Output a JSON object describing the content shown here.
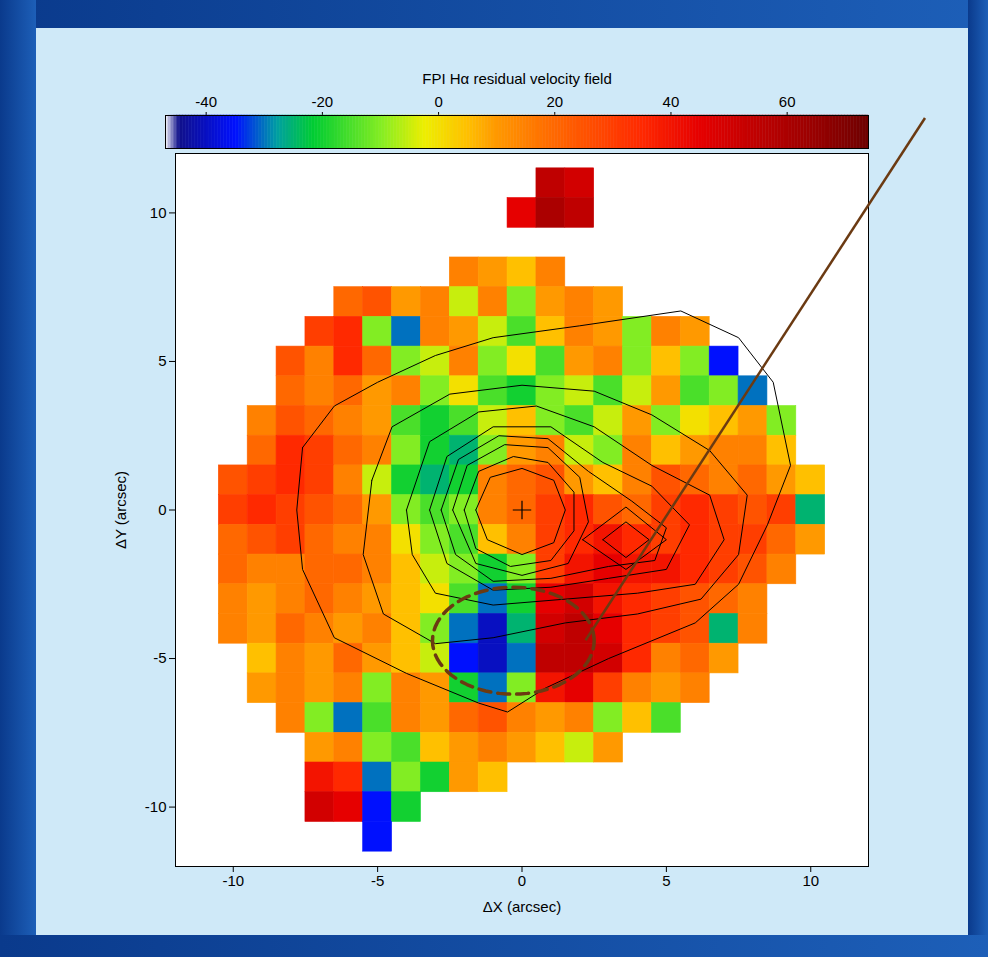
{
  "chart_data": {
    "type": "heatmap",
    "xlabel": "ΔX (arcsec)",
    "ylabel": "ΔY (arcsec)",
    "xlim": [
      -12,
      12
    ],
    "ylim": [
      -12,
      12
    ],
    "xticks": [
      -10,
      -5,
      0,
      5,
      10
    ],
    "yticks": [
      -10,
      -5,
      0,
      5,
      10
    ],
    "x_bins": [
      -11.5,
      -10.5,
      -9.5,
      -8.5,
      -7.5,
      -6.5,
      -5.5,
      -4.5,
      -3.5,
      -2.5,
      -1.5,
      -0.5,
      0.5,
      1.5,
      2.5,
      3.5,
      4.5,
      5.5,
      6.5,
      7.5,
      8.5,
      9.5,
      10.5
    ],
    "y_bins": [
      11.5,
      10.5,
      9.5,
      8.5,
      7.5,
      6.5,
      5.5,
      4.5,
      3.5,
      2.5,
      1.5,
      0.5,
      -0.5,
      -1.5,
      -2.5,
      -3.5,
      -4.5,
      -5.5,
      -6.5,
      -7.5,
      -8.5,
      -9.5,
      -10.5,
      -11.5
    ],
    "cells": [
      [
        null,
        null,
        null,
        null,
        null,
        null,
        null,
        null,
        null,
        null,
        null,
        null,
        55,
        50,
        null,
        null,
        null,
        null,
        null,
        null,
        null,
        null
      ],
      [
        null,
        null,
        null,
        null,
        null,
        null,
        null,
        null,
        null,
        null,
        null,
        45,
        60,
        55,
        null,
        null,
        null,
        null,
        null,
        null,
        null,
        null
      ],
      [
        null,
        null,
        null,
        null,
        null,
        null,
        null,
        null,
        null,
        null,
        null,
        null,
        null,
        null,
        null,
        null,
        null,
        null,
        null,
        null,
        null,
        null
      ],
      [
        null,
        null,
        null,
        null,
        null,
        null,
        null,
        null,
        null,
        15,
        10,
        5,
        15,
        null,
        null,
        null,
        null,
        null,
        null,
        null,
        null,
        null
      ],
      [
        null,
        null,
        null,
        null,
        null,
        20,
        25,
        10,
        15,
        -5,
        15,
        -10,
        10,
        15,
        10,
        null,
        null,
        null,
        null,
        null,
        null,
        null
      ],
      [
        null,
        null,
        null,
        null,
        30,
        35,
        -10,
        -30,
        15,
        10,
        -5,
        -15,
        5,
        15,
        10,
        -10,
        15,
        10,
        null,
        null,
        null,
        null
      ],
      [
        null,
        null,
        null,
        25,
        15,
        35,
        20,
        -10,
        -5,
        15,
        -10,
        0,
        -15,
        10,
        15,
        -10,
        5,
        -10,
        -35,
        null,
        null,
        null
      ],
      [
        null,
        null,
        null,
        20,
        15,
        20,
        10,
        15,
        -10,
        0,
        -15,
        -20,
        -10,
        -5,
        -15,
        -5,
        10,
        -15,
        -10,
        -30,
        null,
        null
      ],
      [
        null,
        null,
        15,
        25,
        20,
        15,
        10,
        -15,
        -20,
        -15,
        -5,
        5,
        -10,
        -15,
        -5,
        10,
        -10,
        0,
        5,
        10,
        -10,
        null
      ],
      [
        null,
        null,
        20,
        35,
        30,
        20,
        15,
        -10,
        -20,
        -25,
        -10,
        10,
        15,
        -5,
        -10,
        15,
        5,
        10,
        15,
        15,
        5,
        null
      ],
      [
        null,
        25,
        30,
        35,
        30,
        15,
        -5,
        -20,
        -25,
        -20,
        15,
        20,
        25,
        10,
        5,
        15,
        25,
        20,
        15,
        20,
        10,
        5
      ],
      [
        null,
        30,
        35,
        30,
        25,
        20,
        10,
        -10,
        -15,
        -10,
        15,
        20,
        30,
        35,
        25,
        20,
        30,
        35,
        30,
        25,
        30,
        -25
      ],
      [
        null,
        20,
        25,
        30,
        20,
        15,
        15,
        0,
        -10,
        -15,
        5,
        15,
        30,
        35,
        40,
        35,
        30,
        35,
        30,
        30,
        20,
        10
      ],
      [
        null,
        20,
        15,
        15,
        20,
        20,
        15,
        5,
        -5,
        -10,
        -20,
        -10,
        30,
        40,
        45,
        40,
        40,
        35,
        30,
        25,
        15,
        null
      ],
      [
        null,
        15,
        10,
        15,
        20,
        15,
        10,
        5,
        0,
        -15,
        -30,
        -20,
        45,
        50,
        40,
        35,
        30,
        25,
        20,
        15,
        null,
        null
      ],
      [
        null,
        15,
        10,
        20,
        15,
        10,
        15,
        5,
        -10,
        -30,
        -40,
        -25,
        50,
        55,
        45,
        35,
        30,
        25,
        -25,
        15,
        null,
        null
      ],
      [
        null,
        null,
        5,
        15,
        10,
        20,
        10,
        5,
        -5,
        -35,
        -40,
        -30,
        55,
        55,
        50,
        35,
        15,
        20,
        10,
        null,
        null,
        null
      ],
      [
        null,
        null,
        10,
        15,
        10,
        15,
        -10,
        15,
        10,
        -20,
        -30,
        -10,
        40,
        45,
        30,
        15,
        10,
        15,
        null,
        null,
        null,
        null
      ],
      [
        null,
        null,
        null,
        15,
        -10,
        -30,
        -15,
        15,
        10,
        20,
        25,
        15,
        10,
        15,
        -10,
        5,
        -15,
        null,
        null,
        null,
        null,
        null
      ],
      [
        null,
        null,
        null,
        null,
        10,
        15,
        -10,
        -15,
        5,
        10,
        15,
        10,
        5,
        -5,
        10,
        null,
        null,
        null,
        null,
        null,
        null,
        null
      ],
      [
        null,
        null,
        null,
        null,
        40,
        35,
        -30,
        -10,
        -20,
        10,
        5,
        null,
        null,
        null,
        null,
        null,
        null,
        null,
        null,
        null,
        null,
        null
      ],
      [
        null,
        null,
        null,
        null,
        50,
        45,
        -35,
        -20,
        null,
        null,
        null,
        null,
        null,
        null,
        null,
        null,
        null,
        null,
        null,
        null,
        null,
        null
      ],
      [
        null,
        null,
        null,
        null,
        null,
        null,
        -35,
        null,
        null,
        null,
        null,
        null,
        null,
        null,
        null,
        null,
        null,
        null,
        null,
        null,
        null,
        null
      ]
    ],
    "colorbar": {
      "title": "FPI Hα residual velocity field",
      "range": [
        -47,
        74
      ],
      "ticks": [
        -40,
        -20,
        0,
        20,
        40,
        60
      ]
    },
    "contours": [
      [
        [
          -7.6,
          2.1
        ],
        [
          -6.5,
          3.5
        ],
        [
          -5,
          4.3
        ],
        [
          -3,
          5.2
        ],
        [
          -1,
          5.8
        ],
        [
          2,
          6.2
        ],
        [
          5.5,
          6.7
        ],
        [
          7.5,
          5.8
        ],
        [
          8.7,
          4.3
        ],
        [
          9.3,
          1.5
        ],
        [
          8.5,
          -0.5
        ],
        [
          7.5,
          -2.5
        ],
        [
          6,
          -3.8
        ],
        [
          3,
          -5
        ],
        [
          0.8,
          -6
        ],
        [
          -0.5,
          -6.8
        ],
        [
          -1.5,
          -6.5
        ],
        [
          -4,
          -5.5
        ],
        [
          -6.5,
          -4.3
        ],
        [
          -7.6,
          -2
        ],
        [
          -7.8,
          0
        ],
        [
          -7.6,
          2.1
        ]
      ],
      [
        [
          -5.2,
          1
        ],
        [
          -4.5,
          2.8
        ],
        [
          -2.5,
          3.9
        ],
        [
          0,
          4.2
        ],
        [
          2.5,
          4
        ],
        [
          4.5,
          3.2
        ],
        [
          6.5,
          2
        ],
        [
          7.8,
          0.5
        ],
        [
          7.5,
          -1.5
        ],
        [
          6.2,
          -3
        ],
        [
          4,
          -3.5
        ],
        [
          1.5,
          -3.8
        ],
        [
          -1,
          -4.3
        ],
        [
          -3,
          -4.5
        ],
        [
          -4.8,
          -3.5
        ],
        [
          -5.5,
          -1.5
        ],
        [
          -5.2,
          1
        ]
      ],
      [
        [
          -4,
          0
        ],
        [
          -3.2,
          2.3
        ],
        [
          -1.5,
          3.3
        ],
        [
          0.5,
          3.5
        ],
        [
          2.5,
          2.8
        ],
        [
          4.5,
          1.5
        ],
        [
          6.5,
          0.5
        ],
        [
          7,
          -1
        ],
        [
          6,
          -2.5
        ],
        [
          4,
          -2.8
        ],
        [
          1.5,
          -3
        ],
        [
          -1,
          -3.2
        ],
        [
          -3,
          -2.8
        ],
        [
          -3.8,
          -1.5
        ],
        [
          -4,
          0
        ]
      ],
      [
        [
          -3.2,
          0
        ],
        [
          -2.6,
          1.8
        ],
        [
          -1,
          2.8
        ],
        [
          1,
          2.8
        ],
        [
          2.8,
          1.6
        ],
        [
          4.5,
          0.8
        ],
        [
          5.8,
          -0.5
        ],
        [
          5,
          -2
        ],
        [
          3,
          -2.3
        ],
        [
          1,
          -2.6
        ],
        [
          -1,
          -2.7
        ],
        [
          -2.6,
          -1.8
        ],
        [
          -3.2,
          0
        ]
      ],
      [
        [
          -2.8,
          0
        ],
        [
          -2.2,
          1.7
        ],
        [
          -0.8,
          2.5
        ],
        [
          0.9,
          2.4
        ],
        [
          2.3,
          1.3
        ],
        [
          3.8,
          0.3
        ],
        [
          5,
          -0.6
        ],
        [
          4.6,
          -1.7
        ],
        [
          3,
          -1.9
        ],
        [
          1,
          -2.3
        ],
        [
          -1,
          -2.4
        ],
        [
          -2.3,
          -1.5
        ],
        [
          -2.8,
          0
        ]
      ],
      [
        [
          -2.4,
          0
        ],
        [
          -1.9,
          1.5
        ],
        [
          -0.6,
          2.2
        ],
        [
          0.9,
          2.1
        ],
        [
          2,
          1.1
        ],
        [
          2.3,
          -0.4
        ],
        [
          1.6,
          -1.8
        ],
        [
          0,
          -2.2
        ],
        [
          -1.6,
          -1.8
        ],
        [
          -2.4,
          0
        ]
      ],
      [
        [
          -2,
          0
        ],
        [
          -1.5,
          1.3
        ],
        [
          -0.3,
          1.8
        ],
        [
          0.9,
          1.6
        ],
        [
          1.8,
          0.6
        ],
        [
          1.8,
          -0.7
        ],
        [
          1,
          -1.7
        ],
        [
          -0.4,
          -1.9
        ],
        [
          -1.6,
          -1.3
        ],
        [
          -2,
          0
        ]
      ],
      [
        [
          -1.6,
          0
        ],
        [
          -1.1,
          1.1
        ],
        [
          0,
          1.4
        ],
        [
          1.1,
          1
        ],
        [
          1.5,
          0
        ],
        [
          1.1,
          -1.1
        ],
        [
          0,
          -1.5
        ],
        [
          -1.2,
          -1
        ],
        [
          -1.6,
          0
        ]
      ],
      [
        [
          2.8,
          -1
        ],
        [
          3.6,
          -0.4
        ],
        [
          4.4,
          -1
        ],
        [
          3.6,
          -1.6
        ],
        [
          2.8,
          -1
        ]
      ],
      [
        [
          2.1,
          -1
        ],
        [
          3.6,
          0.1
        ],
        [
          5,
          -1
        ],
        [
          3.6,
          -2
        ],
        [
          2.1,
          -1
        ]
      ]
    ],
    "center": [
      0,
      0
    ],
    "marker": "plus",
    "annotation": {
      "shape": "ellipse",
      "cx": -0.3,
      "cy": -4.4,
      "rx": 2.8,
      "ry": 1.8,
      "color": "#6b3a12",
      "line_style": "dashed"
    }
  }
}
